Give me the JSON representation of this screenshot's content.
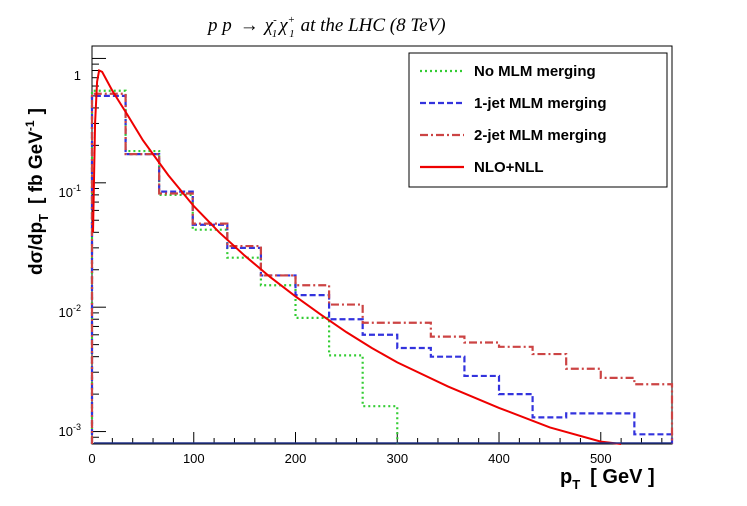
{
  "chart_data": {
    "type": "line",
    "title": {
      "prefix": "p p",
      "arrow": "→",
      "chi": "χ",
      "sup_minus": "-",
      "sup_plus": "+",
      "sub": "1",
      "suffix": "at the LHC (8 TeV)"
    },
    "xlabel": {
      "main": "p",
      "sub": "T",
      "unit": "[ GeV ]"
    },
    "ylabel": {
      "main": "dσ/dp",
      "sub": "T",
      "unit": "[ fb GeV",
      "exp": "-1",
      "close": "]"
    },
    "x_ticks": [
      "0",
      "100",
      "200",
      "300",
      "400",
      "500"
    ],
    "y_ticks": [
      {
        "mant": "10",
        "exp": "-3"
      },
      {
        "mant": "10",
        "exp": "-2"
      },
      {
        "mant": "10",
        "exp": "-1"
      },
      {
        "mant": "1",
        "exp": ""
      }
    ],
    "xlim": [
      0,
      570
    ],
    "ylim_log10": [
      -3.1,
      0.1
    ],
    "scale": "log",
    "legend": "top-right",
    "series": [
      {
        "name": "No MLM merging",
        "kind": "step",
        "color": "#33cc33",
        "dash": "2,3",
        "bins": [
          0,
          33,
          66,
          99,
          133,
          166,
          200,
          233,
          266,
          300
        ],
        "values": [
          0.55,
          0.18,
          0.08,
          0.042,
          0.025,
          0.015,
          0.0082,
          0.0041,
          0.0016
        ]
      },
      {
        "name": "1-jet MLM merging",
        "kind": "step",
        "color": "#3333dd",
        "dash": "6,3",
        "bins": [
          0,
          33,
          66,
          99,
          133,
          166,
          200,
          233,
          266,
          300,
          333,
          366,
          400,
          433,
          466,
          500,
          533,
          570
        ],
        "values": [
          0.5,
          0.17,
          0.085,
          0.046,
          0.03,
          0.018,
          0.0125,
          0.008,
          0.006,
          0.0047,
          0.004,
          0.0028,
          0.002,
          0.0013,
          0.0014,
          0.0014,
          0.00095
        ]
      },
      {
        "name": "2-jet MLM merging",
        "kind": "step",
        "color": "#cc4444",
        "dash": "8,3,2,3",
        "bins": [
          0,
          33,
          66,
          99,
          133,
          166,
          200,
          233,
          266,
          300,
          333,
          366,
          400,
          433,
          466,
          500,
          533,
          570
        ],
        "values": [
          0.52,
          0.17,
          0.082,
          0.047,
          0.031,
          0.018,
          0.015,
          0.0105,
          0.0075,
          0.0075,
          0.0058,
          0.0052,
          0.0048,
          0.0042,
          0.0032,
          0.0027,
          0.0024
        ]
      },
      {
        "name": "NLO+NLL",
        "kind": "line",
        "color": "#ee0000",
        "dash": "",
        "x": [
          1,
          3,
          5,
          7,
          10,
          20,
          35,
          50,
          75,
          100,
          125,
          150,
          175,
          200,
          225,
          250,
          275,
          300,
          350,
          400,
          450,
          500,
          520
        ],
        "y": [
          0.04,
          0.3,
          0.65,
          0.8,
          0.78,
          0.55,
          0.35,
          0.22,
          0.115,
          0.065,
          0.04,
          0.026,
          0.0175,
          0.0122,
          0.0087,
          0.0063,
          0.0047,
          0.0036,
          0.0023,
          0.00155,
          0.00108,
          0.00083,
          0.00075
        ]
      }
    ]
  }
}
